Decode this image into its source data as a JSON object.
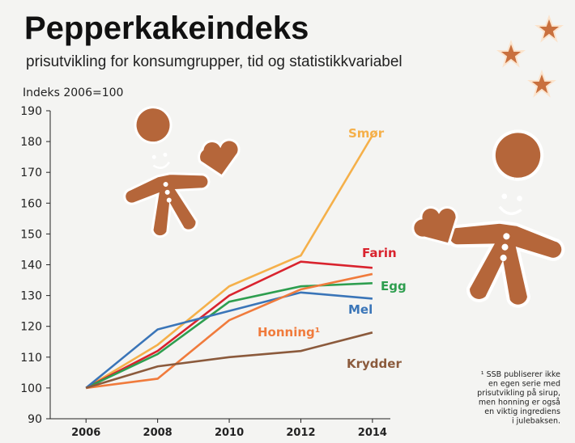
{
  "chart_data": {
    "type": "line",
    "title": "Pepperkakeindeks",
    "subtitle": "prisutvikling for konsumgrupper, tid og statistikkvariabel",
    "y_label": "Indeks 2006=100",
    "x": [
      2006,
      2008,
      2010,
      2012,
      2014
    ],
    "xlim": [
      2005,
      2014.5
    ],
    "xticks": [
      2006,
      2008,
      2010,
      2012,
      2014
    ],
    "ylim": [
      90,
      190
    ],
    "yticks": [
      90,
      100,
      110,
      120,
      130,
      140,
      150,
      160,
      170,
      180,
      190
    ],
    "series": [
      {
        "name": "Smør",
        "color": "#f5b04a",
        "values": [
          100,
          114,
          133,
          143,
          182
        ]
      },
      {
        "name": "Farin",
        "color": "#d9232e",
        "values": [
          100,
          112,
          130,
          141,
          139
        ]
      },
      {
        "name": "Egg",
        "color": "#2e9e4f",
        "values": [
          100,
          111,
          128,
          133,
          134
        ]
      },
      {
        "name": "Mel",
        "color": "#3a75b8",
        "values": [
          100,
          119,
          125,
          131,
          129
        ]
      },
      {
        "name": "Honning¹",
        "color": "#f07b3c",
        "values": [
          100,
          103,
          122,
          132,
          137
        ]
      },
      {
        "name": "Krydder",
        "color": "#8b5a3c",
        "values": [
          100,
          107,
          110,
          112,
          118
        ]
      }
    ],
    "footnote": [
      "¹ SSB publiserer ikke",
      "en egen serie med",
      "prisutvikling på sirup,",
      "men honning er også",
      "en viktig ingrediens",
      "i julebaksen."
    ]
  }
}
